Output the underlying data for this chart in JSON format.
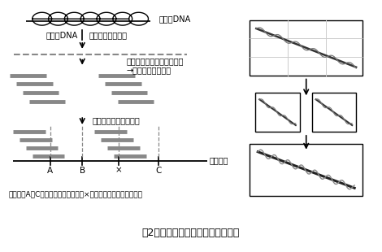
{
  "title": "囲2　コンティグ地図作成の模式図",
  "caption": "最下段のA～Cは遣伝子マーカーを、×は目当ての遣伝子を示す。",
  "label_染色体DNA": "染色体DNA",
  "label_ゲノムDNA": "ゲノムDNA",
  "label_ライブラリー作成": "ライブラリー作成",
  "label_重なり合うクローンの検索": "重なり合うクローンの検索",
  "label_コンティグづくり": "→コンティグづくり",
  "label_遺伝地図との対応づけ": "遣伝地図との対応づけ",
  "label_遺伝地図": "遣伝地図",
  "label_A": "A",
  "label_B": "B",
  "label_x": "×",
  "label_C": "C",
  "bg_color": "#ffffff",
  "line_color": "#000000",
  "gray_color": "#888888",
  "dashed_color": "#888888"
}
